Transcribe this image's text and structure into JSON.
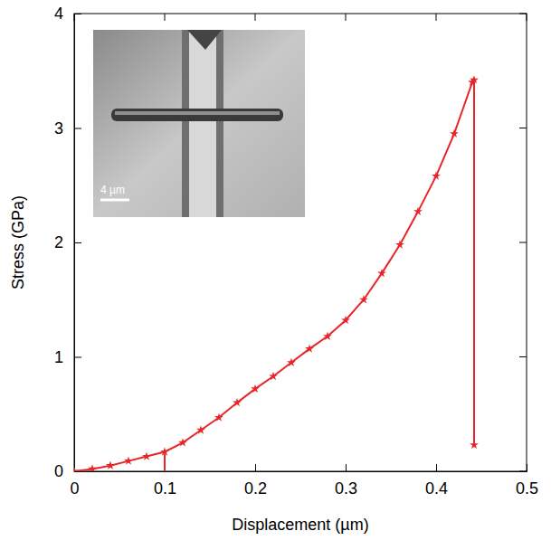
{
  "chart_data": {
    "type": "line",
    "x_label": "Displacement (µm)",
    "y_label": "Stress (GPa)",
    "x": [
      0,
      0.02,
      0.04,
      0.06,
      0.08,
      0.1,
      0.12,
      0.14,
      0.16,
      0.18,
      0.2,
      0.22,
      0.24,
      0.26,
      0.28,
      0.3,
      0.32,
      0.34,
      0.36,
      0.38,
      0.4,
      0.42,
      0.44,
      0.442,
      0.442
    ],
    "values": [
      0,
      0.02,
      0.05,
      0.09,
      0.13,
      0.17,
      0.25,
      0.36,
      0.47,
      0.6,
      0.72,
      0.83,
      0.95,
      1.07,
      1.18,
      1.32,
      1.5,
      1.73,
      1.98,
      2.27,
      2.58,
      2.95,
      3.4,
      3.42,
      0.23
    ],
    "color": "#e8262a",
    "marker": "star",
    "line_style": "solid",
    "marker_line": {
      "x": 0.1,
      "y_range": [
        0,
        0.15
      ]
    },
    "inset": {
      "scale_label": "4 µm"
    },
    "xlim": [
      0,
      0.5
    ],
    "xticks": [
      0,
      0.1,
      0.2,
      0.3,
      0.4,
      0.5
    ],
    "ylim": [
      0,
      4
    ],
    "yticks": [
      0,
      1,
      2,
      3,
      4
    ],
    "grid": false
  }
}
